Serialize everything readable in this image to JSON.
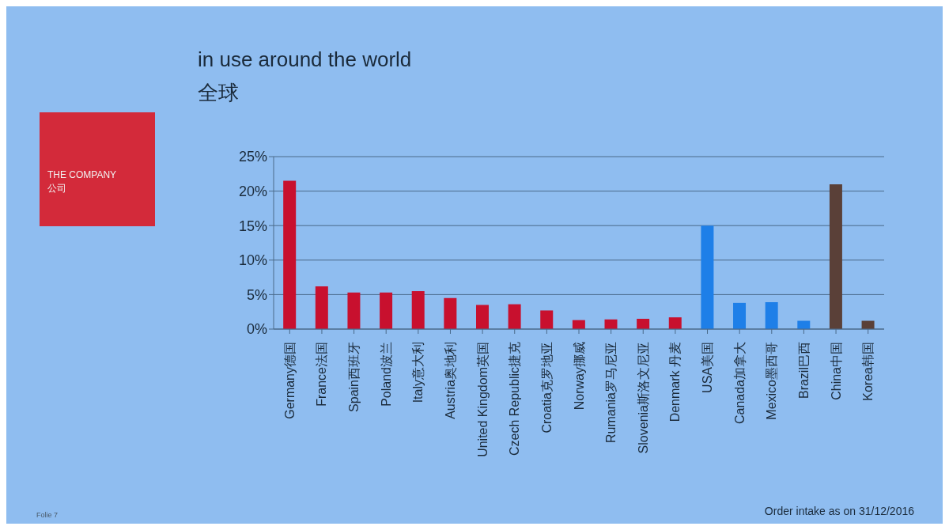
{
  "chart_data": {
    "type": "bar",
    "title": "in use around the world",
    "subtitle": "全球",
    "categories": [
      "Germany德国",
      "France法国",
      "Spain西班牙",
      "Poland波兰",
      "Italy意大利",
      "Austria奥地利",
      "United Kingdom英国",
      "Czech Republic捷克",
      "Croatia克罗地亚",
      "Norway挪威",
      "Rumania罗马尼亚",
      "Slovenia斯洛文尼亚",
      "Denmark 丹麦",
      "USA美国",
      "Canada加拿大",
      "Mexico墨西哥",
      "Brazil巴西",
      "China中国",
      "Korea韩国"
    ],
    "values": [
      21.5,
      6.2,
      5.3,
      5.3,
      5.5,
      4.5,
      3.5,
      3.6,
      2.7,
      1.3,
      1.4,
      1.5,
      1.7,
      15,
      3.8,
      3.9,
      1.2,
      21,
      1.2
    ],
    "colors": [
      "#c8102e",
      "#c8102e",
      "#c8102e",
      "#c8102e",
      "#c8102e",
      "#c8102e",
      "#c8102e",
      "#c8102e",
      "#c8102e",
      "#c8102e",
      "#c8102e",
      "#c8102e",
      "#c8102e",
      "#1e7fe8",
      "#1e7fe8",
      "#1e7fe8",
      "#1e7fe8",
      "#5a4038",
      "#5a4038"
    ],
    "ylim": [
      0,
      25
    ],
    "yticks": [
      {
        "value": 0,
        "label": "0%"
      },
      {
        "value": 5,
        "label": "5%"
      },
      {
        "value": 10,
        "label": "10%"
      },
      {
        "value": 15,
        "label": "15%"
      },
      {
        "value": 20,
        "label": "20%"
      },
      {
        "value": 25,
        "label": "25%"
      }
    ],
    "grid": "y",
    "annotations": [
      "THE COMPANY",
      "公司",
      "Folie 7",
      "Order intake as on 31/12/2016"
    ]
  }
}
